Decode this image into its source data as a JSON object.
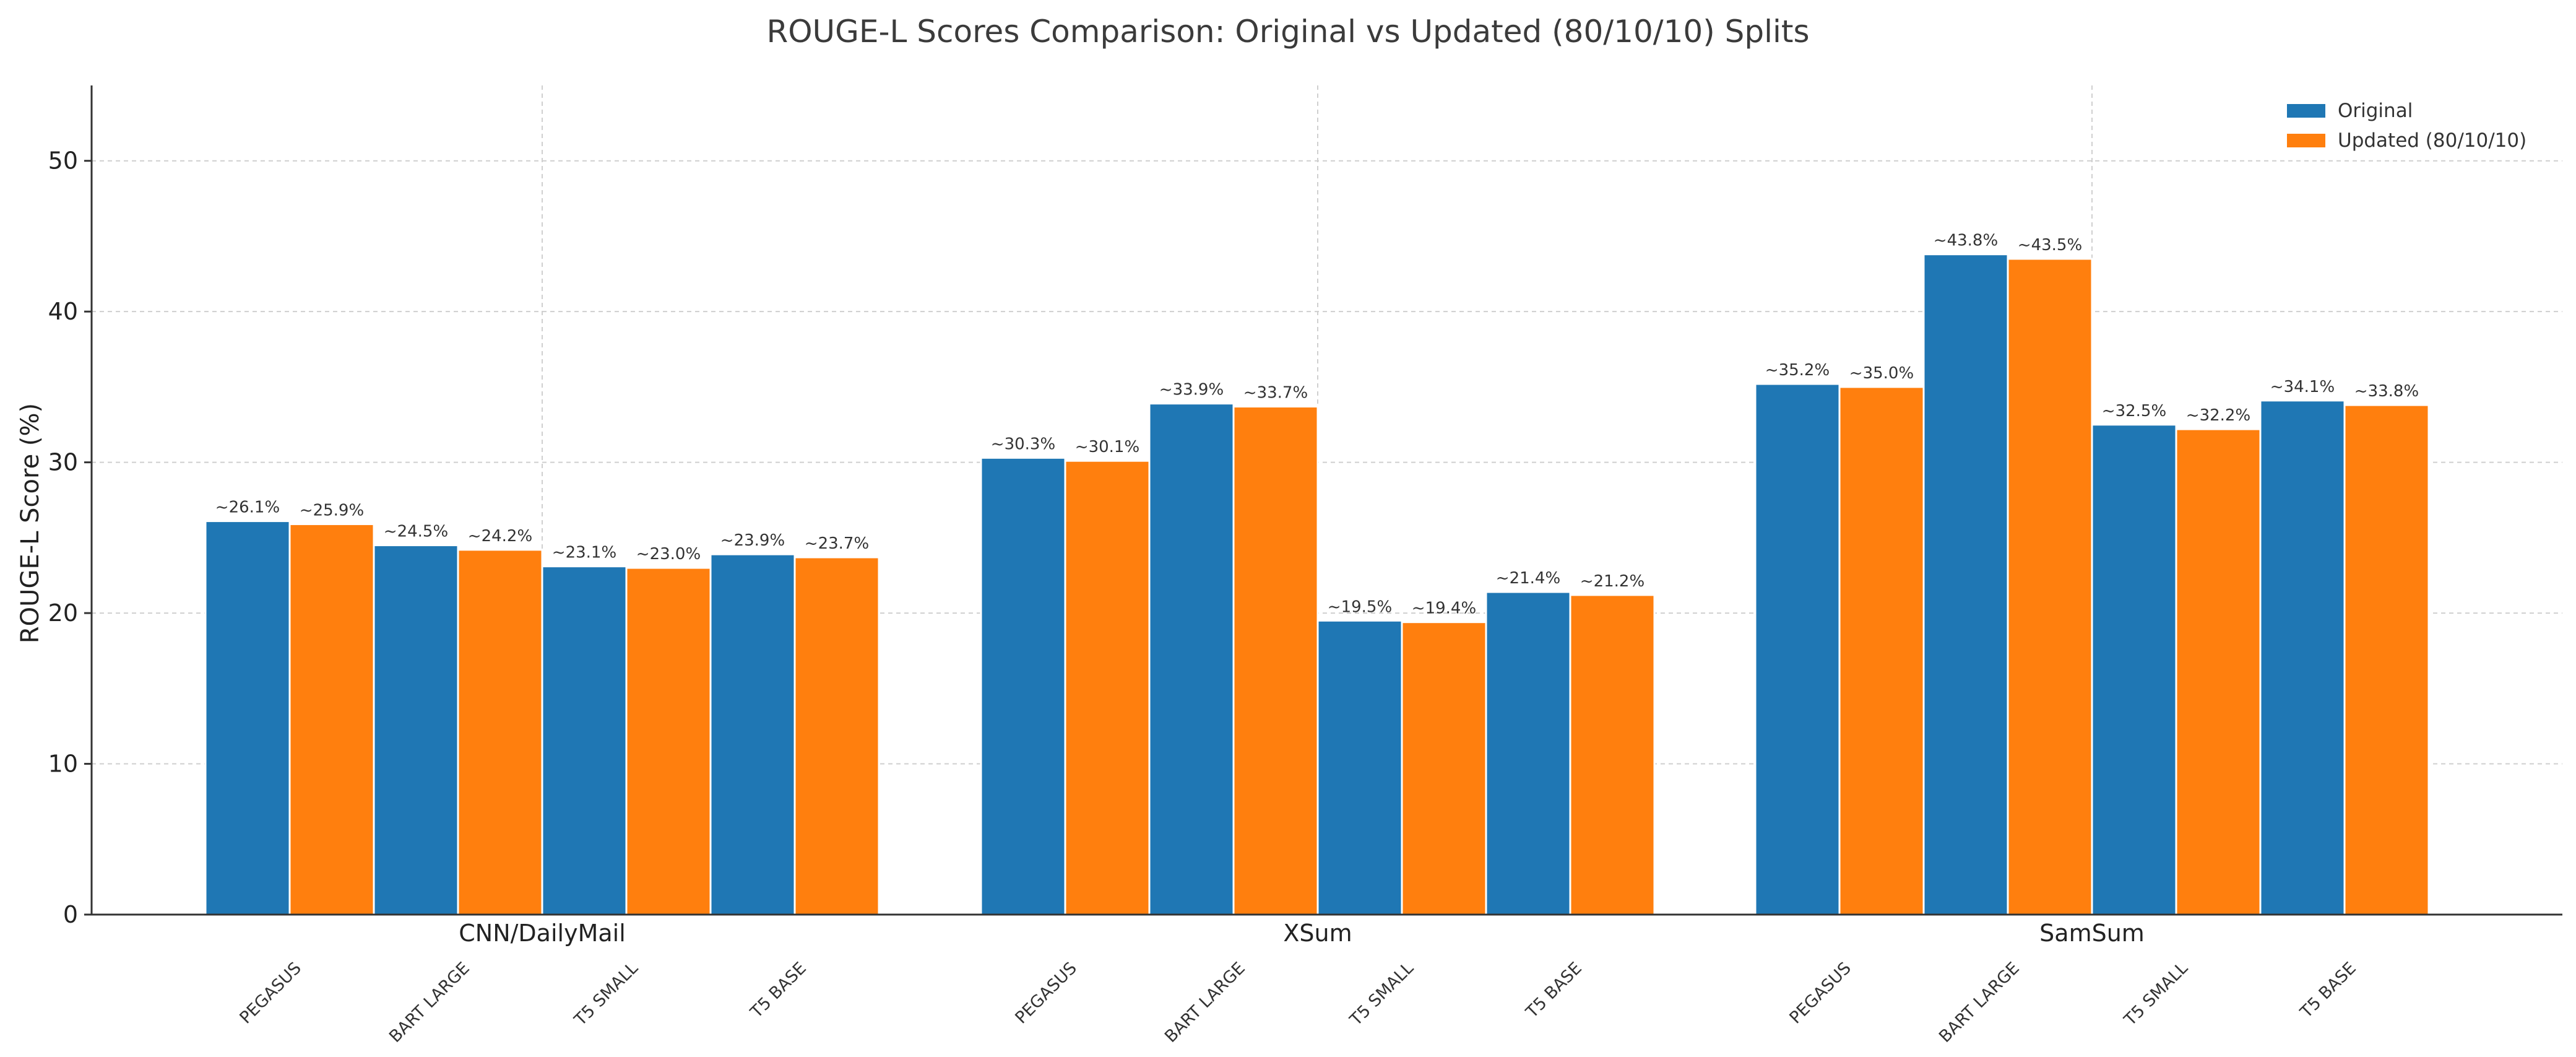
{
  "chart_data": {
    "type": "bar",
    "title": "ROUGE-L Scores Comparison: Original vs Updated (80/10/10) Splits",
    "xlabel": "",
    "ylabel": "ROUGE-L Score (%)",
    "ylim": [
      0,
      55
    ],
    "yticks": [
      0,
      10,
      20,
      30,
      40,
      50
    ],
    "grid": true,
    "legend_position": "top-right",
    "groups": [
      {
        "name": "CNN/DailyMail",
        "models": [
          "PEGASUS",
          "BART LARGE",
          "T5 SMALL",
          "T5 BASE"
        ],
        "original": [
          26.1,
          24.5,
          23.1,
          23.9
        ],
        "updated": [
          25.9,
          24.2,
          23.0,
          23.7
        ],
        "original_labels": [
          "~26.1%",
          "~24.5%",
          "~23.1%",
          "~23.9%"
        ],
        "updated_labels": [
          "~25.9%",
          "~24.2%",
          "~23.0%",
          "~23.7%"
        ]
      },
      {
        "name": "XSum",
        "models": [
          "PEGASUS",
          "BART LARGE",
          "T5 SMALL",
          "T5 BASE"
        ],
        "original": [
          30.3,
          33.9,
          19.5,
          21.4
        ],
        "updated": [
          30.1,
          33.7,
          19.4,
          21.2
        ],
        "original_labels": [
          "~30.3%",
          "~33.9%",
          "~19.5%",
          "~21.4%"
        ],
        "updated_labels": [
          "~30.1%",
          "~33.7%",
          "~19.4%",
          "~21.2%"
        ]
      },
      {
        "name": "SamSum",
        "models": [
          "PEGASUS",
          "BART LARGE",
          "T5 SMALL",
          "T5 BASE"
        ],
        "original": [
          35.2,
          43.8,
          32.5,
          34.1
        ],
        "updated": [
          35.0,
          43.5,
          32.2,
          33.8
        ],
        "original_labels": [
          "~35.2%",
          "~43.8%",
          "~32.5%",
          "~34.1%"
        ],
        "updated_labels": [
          "~35.0%",
          "~43.5%",
          "~32.2%",
          "~33.8%"
        ]
      }
    ],
    "series": [
      {
        "name": "Original",
        "color": "#1f77b4"
      },
      {
        "name": "Updated (80/10/10)",
        "color": "#ff7f0e"
      }
    ]
  }
}
